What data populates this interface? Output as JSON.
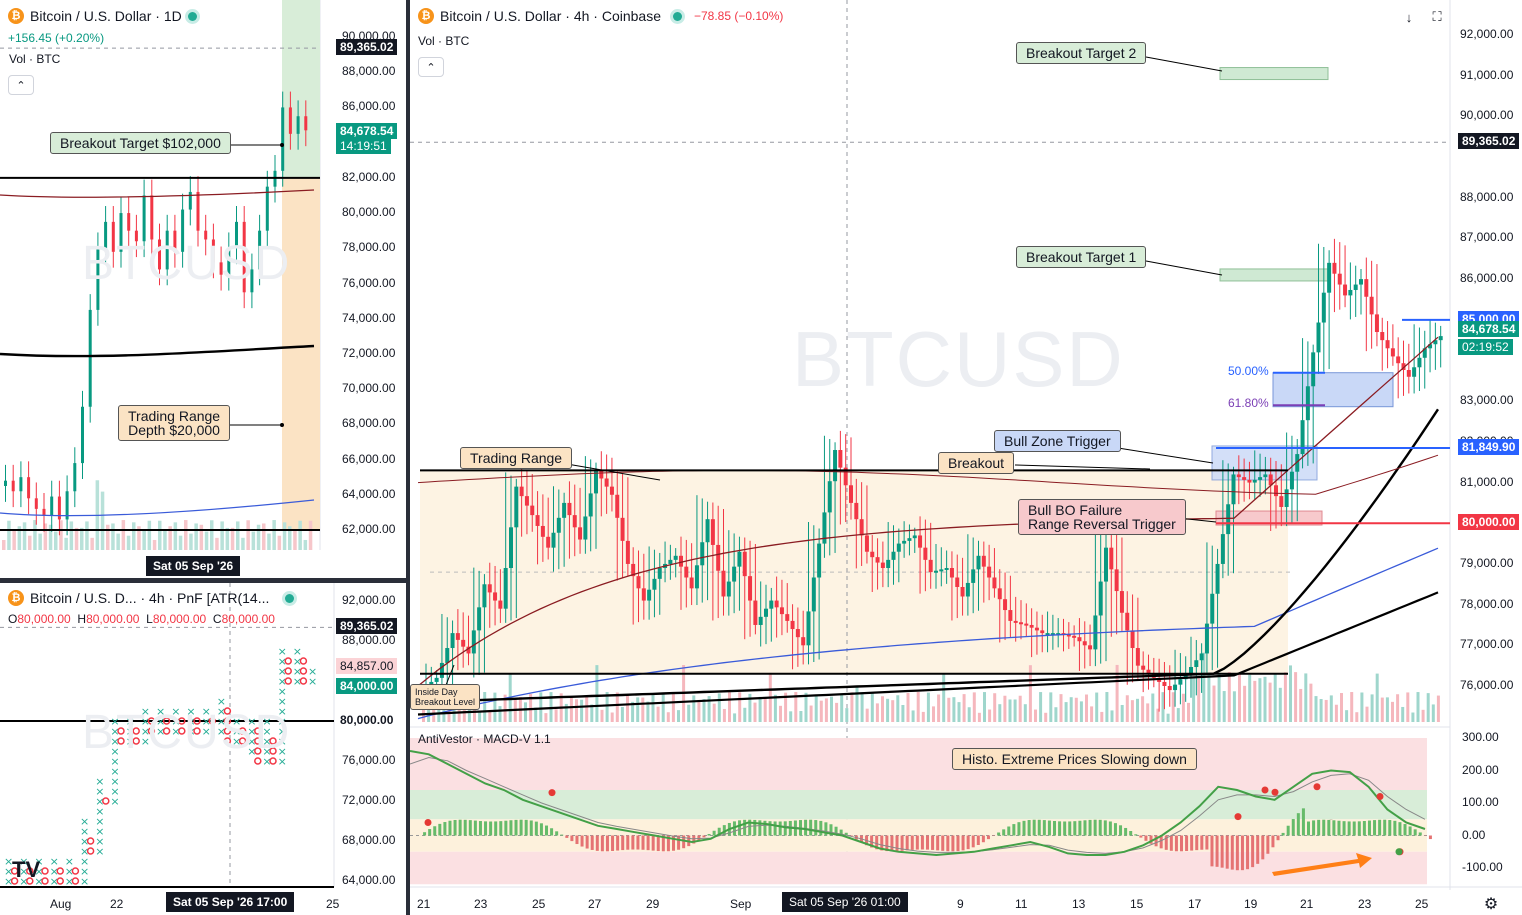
{
  "left_top": {
    "title": "Bitcoin / U.S. Dollar · 1D",
    "change": "+156.45 (+0.20%)",
    "vol": "Vol · BTC",
    "watermark": "BTCUSD",
    "price_axis": [
      "90,000.00",
      "88,000.00",
      "86,000.00",
      "84,000.00",
      "82,000.00",
      "80,000.00",
      "78,000.00",
      "76,000.00",
      "74,000.00",
      "72,000.00",
      "70,000.00",
      "68,000.00",
      "66,000.00",
      "64,000.00",
      "62,000.00"
    ],
    "tag_current": "89,365.02",
    "tag_last": "84,678.54",
    "tag_countdown": "14:19:51",
    "crosshair_date": "Sat 05 Sep '26",
    "annotations": [
      "Breakout Target $102,000",
      "Trading Range",
      "Depth $20,000"
    ]
  },
  "left_bottom": {
    "title": "Bitcoin / U.S. D... · 4h · PnF [ATR(14...",
    "ohlc": {
      "o_lbl": "O",
      "o": "80,000.00",
      "h_lbl": "H",
      "h": "80,000.00",
      "l_lbl": "L",
      "l": "80,000.00",
      "c_lbl": "C",
      "c": "80,000.00"
    },
    "watermark": "BTCUSD",
    "price_axis": [
      "92,000.00",
      "88,000.00",
      "84,000.00",
      "80,000.00",
      "76,000.00",
      "72,000.00",
      "68,000.00",
      "64,000.00"
    ],
    "tag_current": "89,365.02",
    "tag_red": "84,857.00",
    "tag_green": "84,000.00",
    "tag_black": "80,000.00",
    "x_labels": [
      "Aug",
      "22",
      "25"
    ],
    "crosshair_label": "Sat 05 Sep '26   17:00",
    "logo": "TV"
  },
  "main": {
    "title": "Bitcoin / U.S. Dollar · 4h · Coinbase",
    "change": "−78.85 (−0.10%)",
    "vol": "Vol · BTC",
    "watermark": "BTCUSD",
    "price_axis": [
      "92,000.00",
      "91,000.00",
      "90,000.00",
      "88,000.00",
      "87,000.00",
      "86,000.00",
      "85,000.00",
      "83,000.00",
      "82,000.00",
      "81,000.00",
      "79,000.00",
      "78,000.00",
      "77,000.00",
      "76,000.00"
    ],
    "tag_current": "89,365.02",
    "tag_85000": "85,000.00",
    "tag_last": "84,678.54",
    "tag_countdown": "02:19:52",
    "tag_81849": "81,849.90",
    "tag_80000": "80,000.00",
    "fib_50": "50.00%",
    "fib_618": "61.80%",
    "annotations": {
      "bt2": "Breakout Target 2",
      "bt1": "Breakout Target 1",
      "bull_zone": "Bull Zone Trigger",
      "breakout": "Breakout",
      "trading_range": "Trading Range",
      "bull_bo_1": "Bull BO Failure",
      "bull_bo_2": "Range Reversal Trigger",
      "inside_day_1": "Inside Day",
      "inside_day_2": "Breakout Level",
      "histo": "Histo. Extreme Prices Slowing down"
    },
    "macd_title": "AntiVestor · MACD-V 1.1",
    "macd_axis": [
      "300.00",
      "200.00",
      "100.00",
      "0.00",
      "-100.00"
    ],
    "x_labels": [
      "21",
      "23",
      "25",
      "27",
      "29",
      "Sep",
      "9",
      "11",
      "13",
      "15",
      "17",
      "19",
      "21",
      "23",
      "25"
    ],
    "crosshair_label": "Sat 05 Sep '26   01:00"
  },
  "colors": {
    "up": "#089981",
    "down": "#f23645",
    "range_fill": "#fdf3e3",
    "green_zone": "#cfe9d3",
    "blue_zone": "#c9d8f7",
    "red_zone": "#f7c9cc"
  },
  "chart_data": [
    {
      "type": "line",
      "title": "Bitcoin / U.S. Dollar · 4h · Coinbase",
      "ylim": [
        75500,
        92500
      ],
      "series": [
        {
          "values": [
            76200,
            77300,
            76800,
            78500,
            77900,
            80900,
            80200,
            79400,
            80500,
            79600,
            81300,
            80700,
            79000,
            78100,
            78900,
            79200,
            78400,
            80100,
            78200,
            79300,
            77500,
            78100,
            77600,
            77000,
            79500,
            81800,
            80500,
            79300,
            78900,
            79500,
            79700,
            78800,
            78900,
            78200,
            79200,
            78400,
            77600,
            77500,
            77300,
            77300,
            77200,
            76900,
            79400,
            77800,
            76500,
            76200,
            75900,
            76300,
            76800,
            79000,
            81200,
            81000,
            81200,
            80400,
            81700,
            84200,
            86400,
            85600,
            86000,
            84700,
            84100,
            83600,
            84300,
            84600
          ]
        }
      ],
      "levels": {
        "trading_range_top": 81300,
        "trading_range_bottom": 76300,
        "breakout_target_2": 91100,
        "breakout_target_1": 86100,
        "bull_zone_trigger": 81849.9,
        "range_reversal_trigger": 80000,
        "resistance": 85000,
        "last": 84678.54,
        "crosshair": 89365.02,
        "fib_50": 83700,
        "fib_618": 82900
      }
    },
    {
      "type": "line",
      "title": "AntiVestor · MACD-V 1.1",
      "ylim": [
        -150,
        320
      ],
      "series": [
        {
          "values": [
            260,
            250,
            220,
            190,
            160,
            140,
            110,
            90,
            70,
            50,
            30,
            20,
            10,
            0,
            -10,
            -20,
            -10,
            20,
            40,
            35,
            25,
            20,
            10,
            0,
            -20,
            -40,
            -50,
            -55,
            -60,
            -55,
            -50,
            -40,
            -30,
            -20,
            -35,
            -55,
            -60,
            -60,
            -50,
            -30,
            0,
            40,
            90,
            150,
            140,
            120,
            110,
            150,
            190,
            200,
            195,
            150,
            80,
            40,
            20
          ]
        },
        {
          "values": [
            220,
            240,
            230,
            200,
            175,
            150,
            125,
            100,
            80,
            60,
            40,
            28,
            18,
            8,
            -2,
            -10,
            -8,
            8,
            28,
            32,
            28,
            22,
            14,
            4,
            -10,
            -28,
            -40,
            -48,
            -52,
            -52,
            -50,
            -44,
            -36,
            -28,
            -30,
            -45,
            -52,
            -55,
            -50,
            -38,
            -15,
            15,
            60,
            110,
            125,
            125,
            120,
            135,
            165,
            185,
            190,
            170,
            120,
            80,
            50
          ]
        }
      ]
    }
  ]
}
